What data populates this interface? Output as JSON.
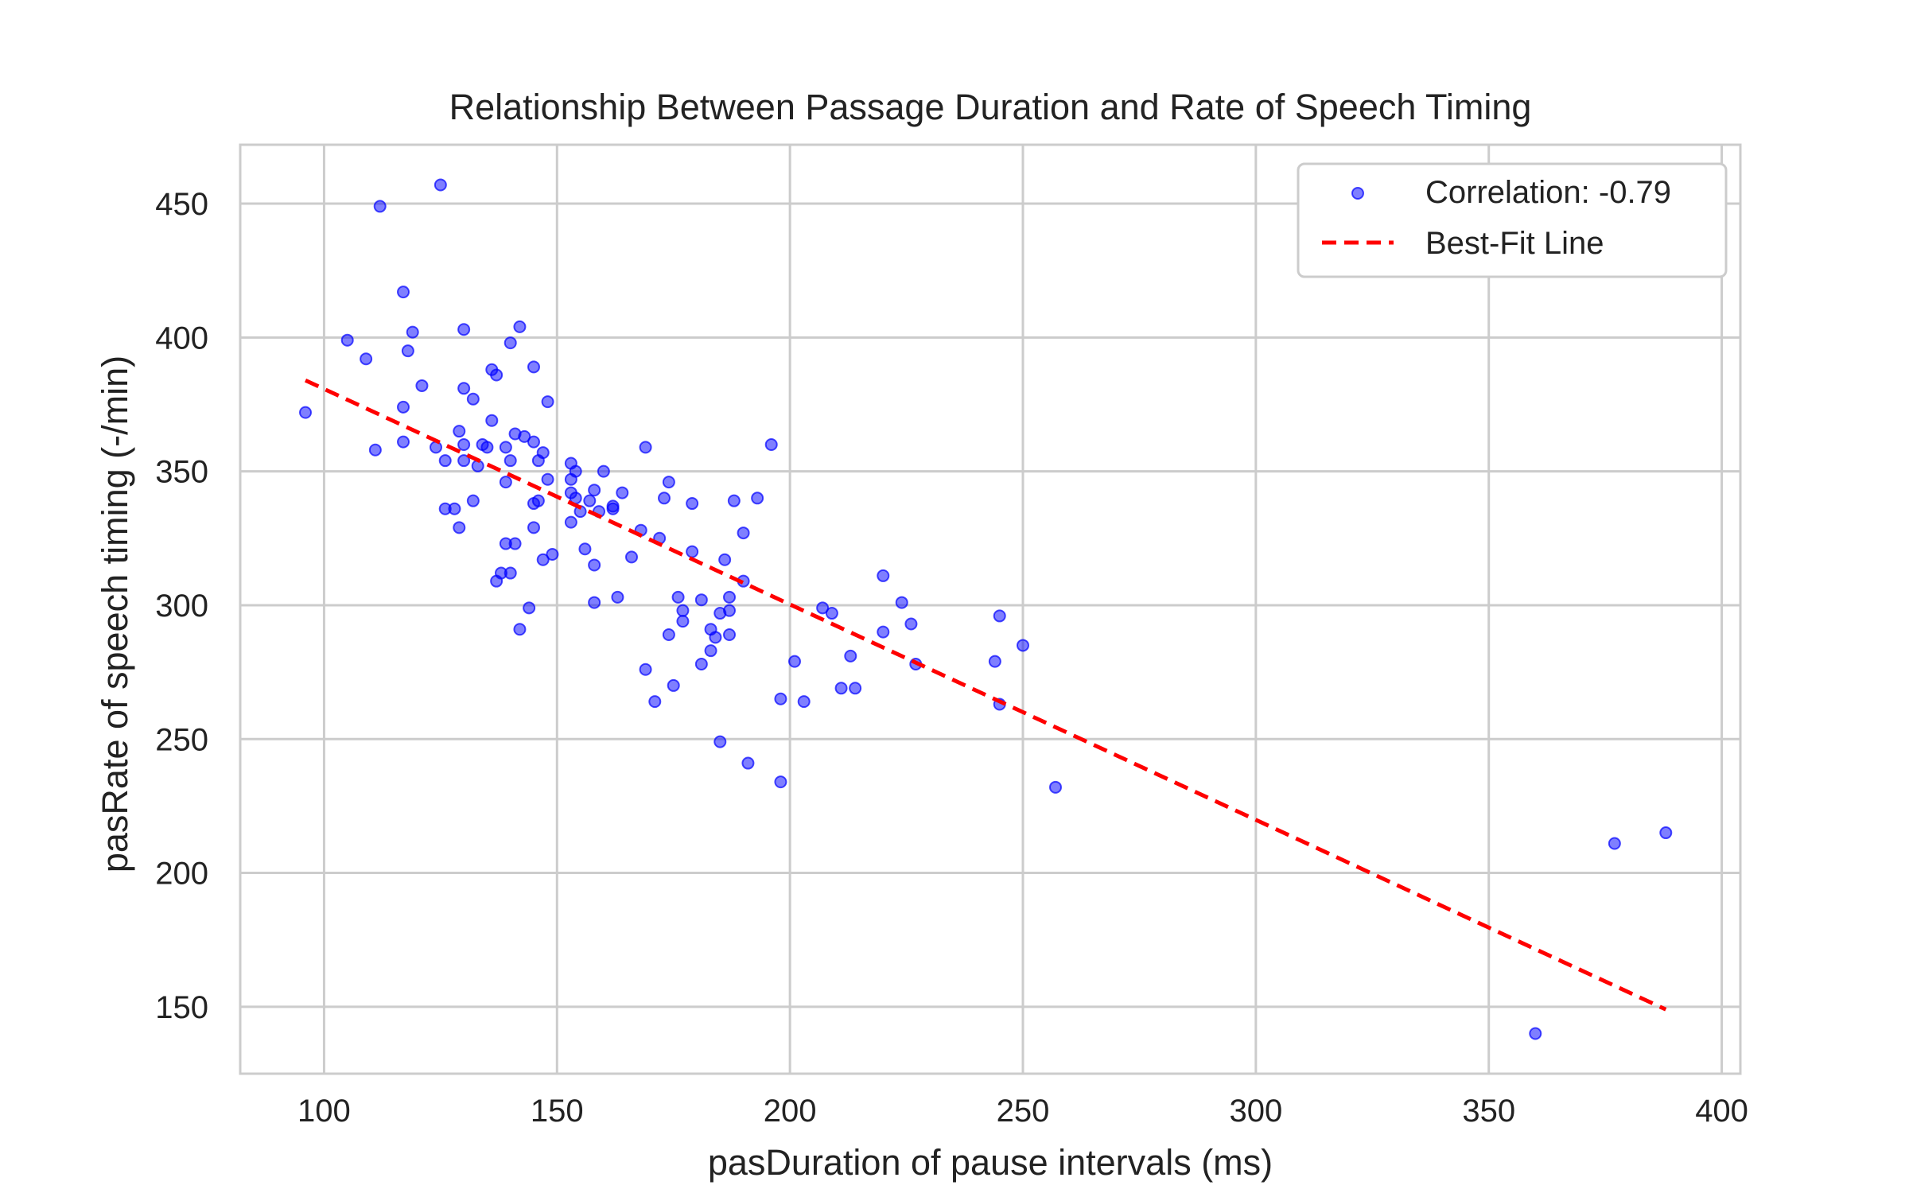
{
  "chart_data": {
    "type": "scatter",
    "title": "Relationship Between Passage Duration and Rate of Speech Timing",
    "xlabel": "pasDuration of pause intervals (ms)",
    "ylabel": "pasRate of speech timing (-/min)",
    "xlim": [
      82,
      404
    ],
    "ylim": [
      125,
      472
    ],
    "xticks": [
      100,
      150,
      200,
      250,
      300,
      350,
      400
    ],
    "yticks": [
      150,
      200,
      250,
      300,
      350,
      400,
      450
    ],
    "grid": true,
    "legend_position": "top-right",
    "series": [
      {
        "name": "Correlation: -0.79",
        "kind": "scatter",
        "color": "#0000ff",
        "points": [
          [
            96,
            372
          ],
          [
            105,
            399
          ],
          [
            109,
            392
          ],
          [
            111,
            358
          ],
          [
            112,
            449
          ],
          [
            117,
            417
          ],
          [
            117,
            374
          ],
          [
            117,
            361
          ],
          [
            118,
            395
          ],
          [
            119,
            402
          ],
          [
            121,
            382
          ],
          [
            124,
            359
          ],
          [
            125,
            457
          ],
          [
            126,
            354
          ],
          [
            126,
            336
          ],
          [
            128,
            336
          ],
          [
            129,
            365
          ],
          [
            129,
            329
          ],
          [
            130,
            403
          ],
          [
            130,
            381
          ],
          [
            130,
            360
          ],
          [
            130,
            354
          ],
          [
            132,
            377
          ],
          [
            132,
            339
          ],
          [
            133,
            352
          ],
          [
            134,
            360
          ],
          [
            135,
            359
          ],
          [
            136,
            369
          ],
          [
            136,
            388
          ],
          [
            137,
            386
          ],
          [
            137,
            309
          ],
          [
            138,
            312
          ],
          [
            139,
            359
          ],
          [
            139,
            346
          ],
          [
            139,
            323
          ],
          [
            140,
            398
          ],
          [
            140,
            354
          ],
          [
            140,
            312
          ],
          [
            141,
            364
          ],
          [
            141,
            323
          ],
          [
            142,
            404
          ],
          [
            142,
            291
          ],
          [
            143,
            363
          ],
          [
            144,
            299
          ],
          [
            145,
            389
          ],
          [
            145,
            361
          ],
          [
            145,
            338
          ],
          [
            145,
            329
          ],
          [
            146,
            354
          ],
          [
            146,
            339
          ],
          [
            147,
            357
          ],
          [
            147,
            317
          ],
          [
            148,
            376
          ],
          [
            148,
            347
          ],
          [
            149,
            319
          ],
          [
            153,
            353
          ],
          [
            153,
            347
          ],
          [
            153,
            342
          ],
          [
            153,
            331
          ],
          [
            154,
            350
          ],
          [
            154,
            340
          ],
          [
            155,
            335
          ],
          [
            156,
            321
          ],
          [
            157,
            339
          ],
          [
            158,
            343
          ],
          [
            158,
            315
          ],
          [
            158,
            301
          ],
          [
            159,
            335
          ],
          [
            160,
            350
          ],
          [
            162,
            337
          ],
          [
            162,
            336
          ],
          [
            163,
            303
          ],
          [
            164,
            342
          ],
          [
            166,
            318
          ],
          [
            168,
            328
          ],
          [
            169,
            359
          ],
          [
            169,
            276
          ],
          [
            171,
            264
          ],
          [
            172,
            325
          ],
          [
            173,
            340
          ],
          [
            174,
            346
          ],
          [
            174,
            289
          ],
          [
            175,
            270
          ],
          [
            176,
            303
          ],
          [
            177,
            298
          ],
          [
            177,
            294
          ],
          [
            179,
            338
          ],
          [
            179,
            320
          ],
          [
            181,
            302
          ],
          [
            181,
            278
          ],
          [
            183,
            291
          ],
          [
            183,
            283
          ],
          [
            184,
            288
          ],
          [
            185,
            297
          ],
          [
            185,
            249
          ],
          [
            186,
            317
          ],
          [
            187,
            303
          ],
          [
            187,
            298
          ],
          [
            187,
            289
          ],
          [
            188,
            339
          ],
          [
            190,
            327
          ],
          [
            190,
            309
          ],
          [
            191,
            241
          ],
          [
            193,
            340
          ],
          [
            196,
            360
          ],
          [
            198,
            265
          ],
          [
            198,
            234
          ],
          [
            201,
            279
          ],
          [
            203,
            264
          ],
          [
            207,
            299
          ],
          [
            209,
            297
          ],
          [
            211,
            269
          ],
          [
            213,
            281
          ],
          [
            214,
            269
          ],
          [
            220,
            311
          ],
          [
            220,
            290
          ],
          [
            224,
            301
          ],
          [
            226,
            293
          ],
          [
            227,
            278
          ],
          [
            244,
            279
          ],
          [
            245,
            296
          ],
          [
            245,
            263
          ],
          [
            250,
            285
          ],
          [
            257,
            232
          ],
          [
            360,
            140
          ],
          [
            377,
            211
          ],
          [
            388,
            215
          ]
        ]
      },
      {
        "name": "Best-Fit Line",
        "kind": "line",
        "color": "#ff0000",
        "points": [
          [
            96,
            384
          ],
          [
            388,
            149
          ]
        ]
      }
    ]
  }
}
